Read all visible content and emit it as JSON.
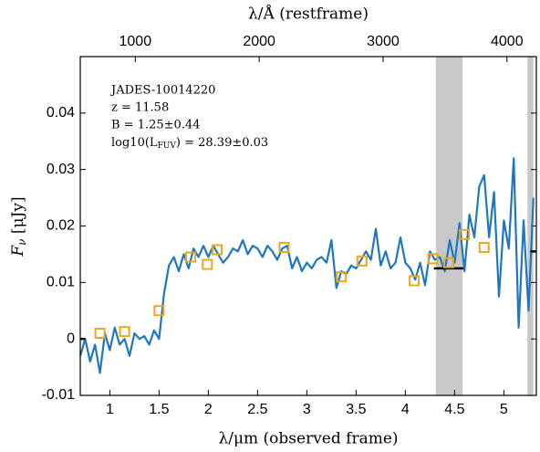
{
  "chart_data": {
    "type": "line",
    "x_label": "λ/μm (observed frame)",
    "x2_label": "λ/Å (restframe)",
    "y_label_parts": [
      "F",
      "ν",
      " [μJy]"
    ],
    "annotations": [
      "JADES-10014220",
      "z = 11.58",
      "B = 1.25±0.44"
    ],
    "annotation_parts": [
      "log10(L",
      "FUV",
      ") = 28.39±0.03"
    ],
    "xlim": [
      0.7,
      5.33
    ],
    "xticks": [
      1,
      1.5,
      2,
      2.5,
      3,
      3.5,
      4,
      4.5,
      5
    ],
    "x2lim": [
      556,
      4237
    ],
    "x2ticks": [
      1000,
      2000,
      3000,
      4000
    ],
    "ylim": [
      -0.01,
      0.05
    ],
    "yticks": [
      -0.01,
      0,
      0.01,
      0.02,
      0.03,
      0.04
    ],
    "shaded_bands": [
      [
        4.31,
        4.58
      ],
      [
        5.24,
        5.3
      ]
    ],
    "band_color": "#c8c8c8",
    "spectrum": {
      "color": "#1f77c0",
      "x": [
        0.7,
        0.75,
        0.8,
        0.85,
        0.9,
        0.95,
        1.0,
        1.05,
        1.1,
        1.15,
        1.2,
        1.25,
        1.3,
        1.35,
        1.4,
        1.45,
        1.5,
        1.55,
        1.6,
        1.65,
        1.7,
        1.75,
        1.8,
        1.85,
        1.9,
        1.95,
        2.0,
        2.05,
        2.1,
        2.15,
        2.2,
        2.25,
        2.3,
        2.35,
        2.4,
        2.45,
        2.5,
        2.55,
        2.6,
        2.65,
        2.7,
        2.75,
        2.8,
        2.85,
        2.9,
        2.95,
        3.0,
        3.05,
        3.1,
        3.15,
        3.2,
        3.25,
        3.3,
        3.35,
        3.4,
        3.45,
        3.5,
        3.55,
        3.6,
        3.65,
        3.7,
        3.75,
        3.8,
        3.85,
        3.9,
        3.95,
        4.0,
        4.05,
        4.1,
        4.15,
        4.2,
        4.25,
        4.3,
        4.35,
        4.4,
        4.45,
        4.5,
        4.55,
        4.6,
        4.65,
        4.7,
        4.75,
        4.8,
        4.85,
        4.9,
        4.95,
        5.0,
        5.05,
        5.1,
        5.15,
        5.2,
        5.25,
        5.3
      ],
      "values": [
        -0.003,
        0,
        -0.004,
        -0.001,
        -0.006,
        0.001,
        -0.002,
        0.002,
        -0.001,
        0,
        -0.003,
        0.001,
        0,
        0.0005,
        -0.001,
        0.0015,
        0,
        0.008,
        0.013,
        0.0145,
        0.012,
        0.015,
        0.0125,
        0.016,
        0.0145,
        0.0165,
        0.0145,
        0.0165,
        0.015,
        0.0135,
        0.0145,
        0.016,
        0.0155,
        0.0175,
        0.015,
        0.0165,
        0.016,
        0.0145,
        0.0165,
        0.0155,
        0.014,
        0.016,
        0.0165,
        0.0125,
        0.0145,
        0.012,
        0.0135,
        0.0125,
        0.014,
        0.0145,
        0.0135,
        0.0175,
        0.009,
        0.012,
        0.0115,
        0.013,
        0.0125,
        0.014,
        0.0155,
        0.014,
        0.0195,
        0.013,
        0.0155,
        0.0125,
        0.0135,
        0.018,
        0.0135,
        0.0125,
        0.0105,
        0.0135,
        0.0095,
        0.0155,
        0.014,
        0.0145,
        0.012,
        0.0175,
        0.0135,
        0.0205,
        0.012,
        0.022,
        0.018,
        0.027,
        0.029,
        0.018,
        0.026,
        0.0075,
        0.021,
        0.016,
        0.032,
        0.002,
        0.021,
        0.005,
        0.025
      ]
    },
    "photometry": {
      "color": "#e8a820",
      "x": [
        0.9,
        1.15,
        1.5,
        1.82,
        1.99,
        2.09,
        2.77,
        3.35,
        3.56,
        4.09,
        4.28,
        4.44,
        4.6,
        4.8
      ],
      "values": [
        0.001,
        0.0013,
        0.005,
        0.0145,
        0.0132,
        0.0158,
        0.0162,
        0.011,
        0.0138,
        0.0103,
        0.0142,
        0.0135,
        0.0185,
        0.0162
      ]
    },
    "bars": [
      {
        "x": [
          4.29,
          4.59
        ],
        "y": 0.0125
      },
      {
        "x": [
          5.27,
          5.33
        ],
        "y": 0.0155
      },
      {
        "x": [
          0.7,
          0.75
        ],
        "y": 0
      }
    ],
    "bar_color": "#000000"
  }
}
